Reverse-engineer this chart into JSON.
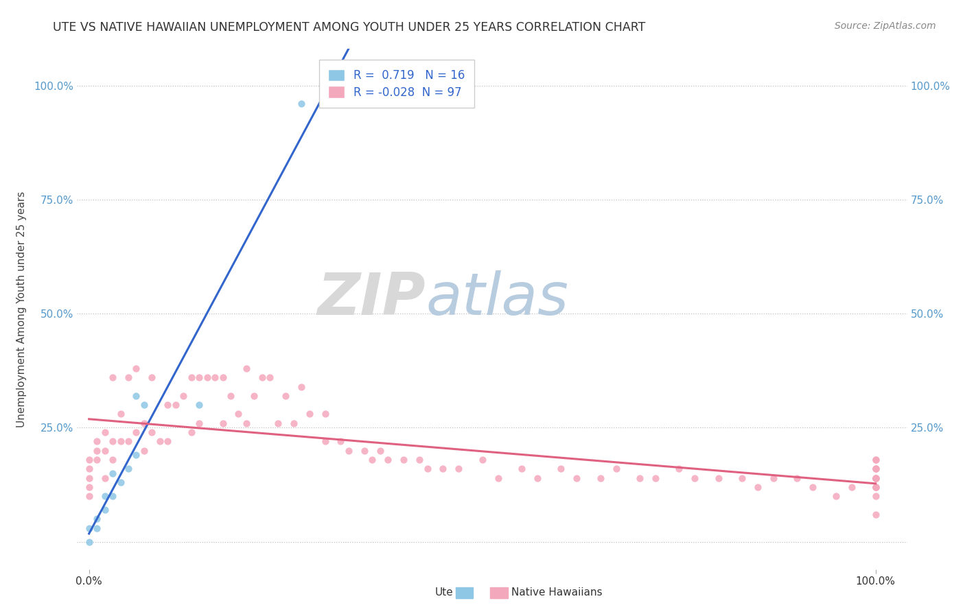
{
  "title": "UTE VS NATIVE HAWAIIAN UNEMPLOYMENT AMONG YOUTH UNDER 25 YEARS CORRELATION CHART",
  "source": "Source: ZipAtlas.com",
  "ylabel": "Unemployment Among Youth under 25 years",
  "ute_r": 0.719,
  "ute_n": 16,
  "nh_r": -0.028,
  "nh_n": 97,
  "ute_color": "#8ec6e6",
  "nh_color": "#f4a8bc",
  "ute_line_color": "#3366cc",
  "nh_line_color": "#e06080",
  "watermark_zip": "ZIP",
  "watermark_atlas": "atlas",
  "ute_points_x": [
    0.0,
    0.0,
    0.01,
    0.01,
    0.02,
    0.02,
    0.03,
    0.03,
    0.04,
    0.05,
    0.06,
    0.06,
    0.07,
    0.14,
    0.27,
    0.3
  ],
  "ute_points_y": [
    0.0,
    0.03,
    0.03,
    0.05,
    0.07,
    0.1,
    0.1,
    0.15,
    0.13,
    0.16,
    0.19,
    0.32,
    0.3,
    0.3,
    0.96,
    0.97
  ],
  "nh_points_x": [
    0.0,
    0.0,
    0.0,
    0.0,
    0.0,
    0.01,
    0.01,
    0.01,
    0.02,
    0.02,
    0.02,
    0.03,
    0.03,
    0.03,
    0.04,
    0.04,
    0.05,
    0.05,
    0.06,
    0.06,
    0.07,
    0.07,
    0.08,
    0.08,
    0.09,
    0.1,
    0.1,
    0.11,
    0.12,
    0.13,
    0.13,
    0.14,
    0.14,
    0.15,
    0.16,
    0.17,
    0.17,
    0.18,
    0.19,
    0.2,
    0.2,
    0.21,
    0.22,
    0.23,
    0.24,
    0.25,
    0.26,
    0.27,
    0.28,
    0.3,
    0.3,
    0.32,
    0.33,
    0.35,
    0.36,
    0.37,
    0.38,
    0.4,
    0.42,
    0.43,
    0.45,
    0.47,
    0.5,
    0.52,
    0.55,
    0.57,
    0.6,
    0.62,
    0.65,
    0.67,
    0.7,
    0.72,
    0.75,
    0.77,
    0.8,
    0.83,
    0.85,
    0.87,
    0.9,
    0.92,
    0.95,
    0.97,
    1.0,
    1.0,
    1.0,
    1.0,
    1.0,
    1.0,
    1.0,
    1.0,
    1.0,
    1.0,
    1.0,
    1.0,
    1.0,
    1.0,
    1.0
  ],
  "nh_points_y": [
    0.18,
    0.16,
    0.14,
    0.12,
    0.1,
    0.22,
    0.2,
    0.18,
    0.24,
    0.2,
    0.14,
    0.36,
    0.22,
    0.18,
    0.28,
    0.22,
    0.36,
    0.22,
    0.38,
    0.24,
    0.26,
    0.2,
    0.36,
    0.24,
    0.22,
    0.3,
    0.22,
    0.3,
    0.32,
    0.36,
    0.24,
    0.36,
    0.26,
    0.36,
    0.36,
    0.36,
    0.26,
    0.32,
    0.28,
    0.38,
    0.26,
    0.32,
    0.36,
    0.36,
    0.26,
    0.32,
    0.26,
    0.34,
    0.28,
    0.22,
    0.28,
    0.22,
    0.2,
    0.2,
    0.18,
    0.2,
    0.18,
    0.18,
    0.18,
    0.16,
    0.16,
    0.16,
    0.18,
    0.14,
    0.16,
    0.14,
    0.16,
    0.14,
    0.14,
    0.16,
    0.14,
    0.14,
    0.16,
    0.14,
    0.14,
    0.14,
    0.12,
    0.14,
    0.14,
    0.12,
    0.1,
    0.12,
    0.18,
    0.16,
    0.14,
    0.14,
    0.16,
    0.14,
    0.18,
    0.14,
    0.12,
    0.14,
    0.12,
    0.16,
    0.1,
    0.12,
    0.06
  ]
}
